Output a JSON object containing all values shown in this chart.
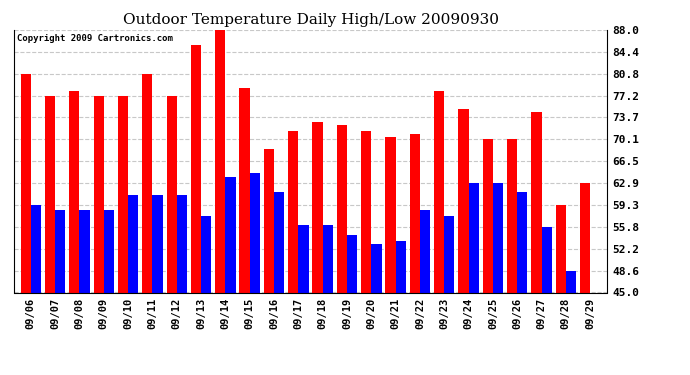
{
  "title": "Outdoor Temperature Daily High/Low 20090930",
  "copyright_text": "Copyright 2009 Cartronics.com",
  "dates": [
    "09/06",
    "09/07",
    "09/08",
    "09/09",
    "09/10",
    "09/11",
    "09/12",
    "09/13",
    "09/14",
    "09/15",
    "09/16",
    "09/17",
    "09/18",
    "09/19",
    "09/20",
    "09/21",
    "09/22",
    "09/23",
    "09/24",
    "09/25",
    "09/26",
    "09/27",
    "09/28",
    "09/29"
  ],
  "highs": [
    80.8,
    77.2,
    78.0,
    77.2,
    77.2,
    80.8,
    77.2,
    85.5,
    88.0,
    78.5,
    68.5,
    71.5,
    73.0,
    72.5,
    71.5,
    70.5,
    71.0,
    78.0,
    75.0,
    70.1,
    70.1,
    74.5,
    59.3,
    62.9
  ],
  "lows": [
    59.3,
    58.5,
    58.5,
    58.5,
    61.0,
    61.0,
    61.0,
    57.5,
    64.0,
    64.5,
    61.5,
    56.0,
    56.0,
    54.5,
    53.0,
    53.5,
    58.5,
    57.5,
    62.9,
    62.9,
    61.5,
    55.8,
    48.6,
    45.0
  ],
  "high_color": "#ff0000",
  "low_color": "#0000ff",
  "bg_color": "#ffffff",
  "grid_color": "#c8c8c8",
  "ylim_min": 45.0,
  "ylim_max": 88.0,
  "yticks": [
    45.0,
    48.6,
    52.2,
    55.8,
    59.3,
    62.9,
    66.5,
    70.1,
    73.7,
    77.2,
    80.8,
    84.4,
    88.0
  ],
  "bar_width": 0.42
}
